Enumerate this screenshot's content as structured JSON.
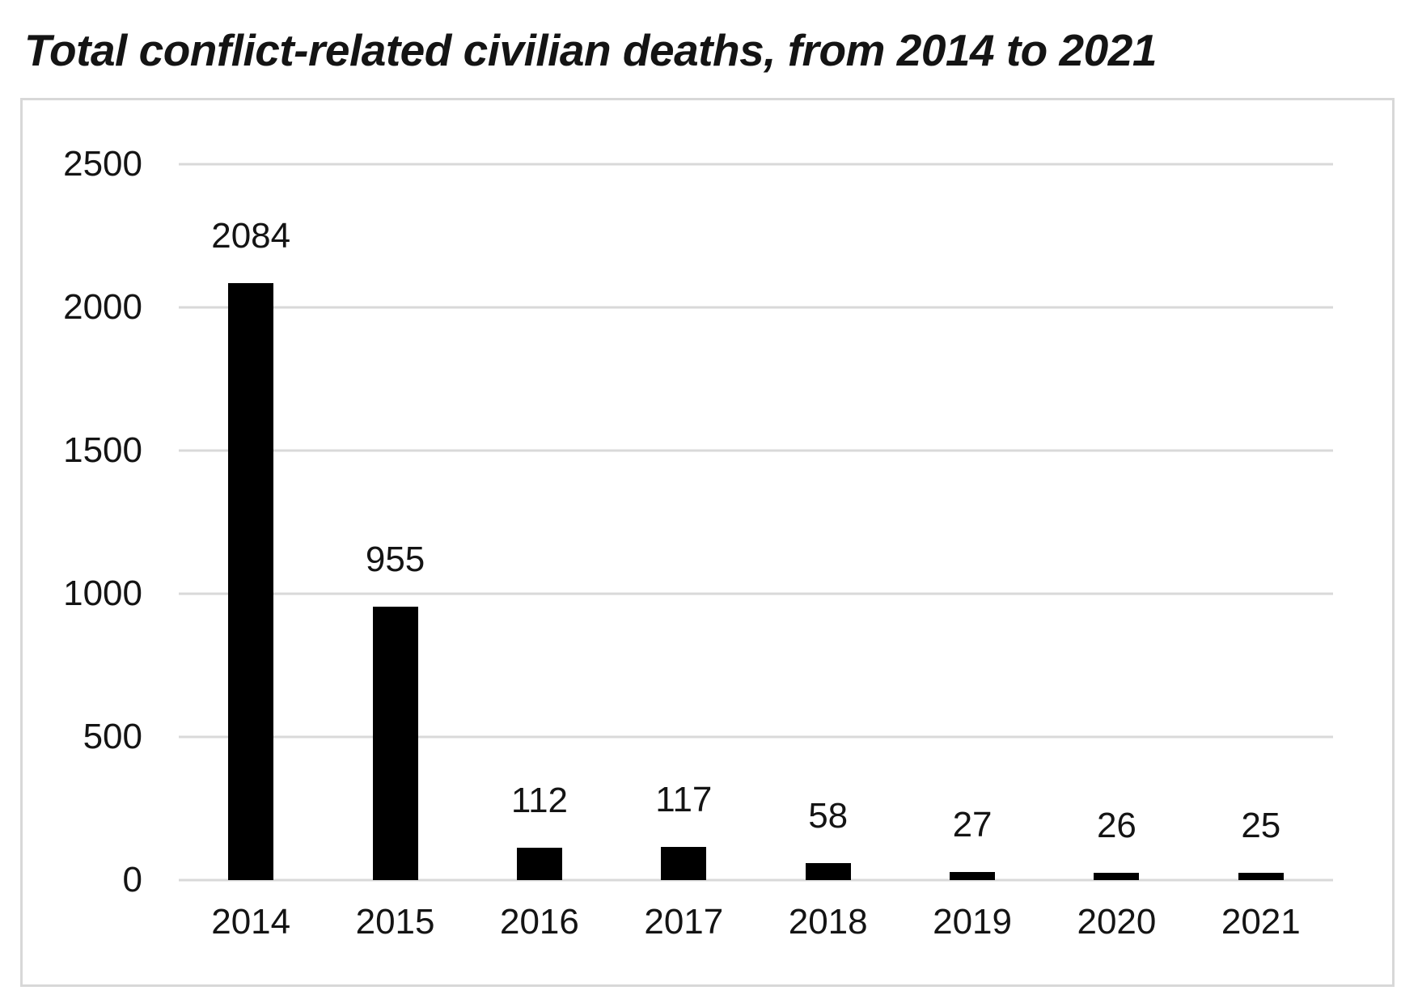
{
  "header": {
    "title": "Total conflict-related civilian deaths, from 2014 to 2021"
  },
  "chart_data": {
    "type": "bar",
    "title": "Total conflict-related civilian deaths, from 2014 to 2021",
    "categories": [
      "2014",
      "2015",
      "2016",
      "2017",
      "2018",
      "2019",
      "2020",
      "2021"
    ],
    "values": [
      2084,
      955,
      112,
      117,
      58,
      27,
      26,
      25
    ],
    "data_labels_visible": true,
    "xlabel": "",
    "ylabel": "",
    "ylim": [
      0,
      2500
    ],
    "yticks": [
      0,
      500,
      1000,
      1500,
      2000,
      2500
    ],
    "grid": true,
    "legend": "none",
    "colors": {
      "bar": "#000000",
      "gridline": "#d9d9d9",
      "frame_border": "#d8d8d8",
      "text": "#141414",
      "background": "#ffffff"
    }
  }
}
